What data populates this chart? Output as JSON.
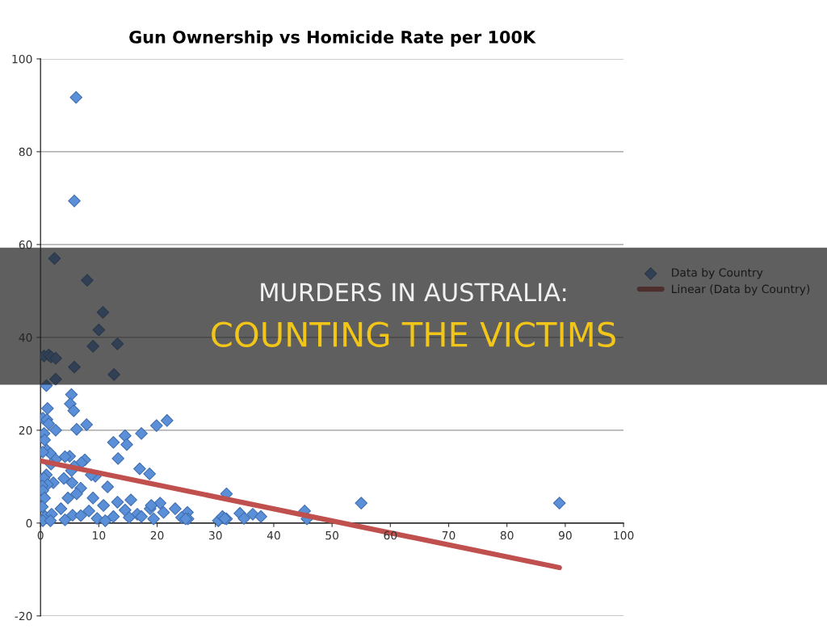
{
  "chart_data": {
    "type": "scatter",
    "title": "Gun Ownership vs Homicide Rate per 100K",
    "annotations": [
      "MURDERS IN AUSTRALIA:",
      "COUNTING THE VICTIMS"
    ],
    "series": [
      {
        "name": "Data by Country",
        "color": "#5b8fd8",
        "marker": "diamond",
        "x": [
          6.1,
          5.8,
          2.4,
          8.0,
          10.7,
          10.0,
          9.0,
          13.2,
          0.6,
          1.4,
          1.8,
          2.6,
          5.8,
          12.6,
          2.6,
          1.0,
          5.3,
          5.1,
          1.2,
          5.7,
          0.4,
          1.1,
          1.4,
          2.6,
          6.2,
          7.9,
          21.7,
          19.9,
          17.3,
          14.5,
          14.8,
          12.5,
          0.6,
          0.7,
          1.1,
          1.7,
          0.4,
          18.7,
          17.0,
          13.3,
          5.0,
          4.2,
          7.6,
          7.0,
          5.8,
          2.6,
          1.8,
          1.0,
          0.6,
          5.3,
          9.4,
          8.7,
          4.0,
          2.2,
          1.2,
          0.3,
          5.4,
          11.5,
          0.4,
          0.7,
          6.9,
          9.0,
          6.2,
          4.7,
          13.2,
          15.5,
          10.8,
          20.5,
          23.1,
          18.8,
          25.2,
          21.1,
          14.5,
          16.6,
          8.3,
          3.5,
          0.3,
          0.8,
          1.9,
          5.5,
          6.9,
          9.7,
          12.5,
          15.2,
          19.4,
          24.2,
          25.3,
          0.4,
          1.7,
          4.2,
          11.1,
          31.9,
          31.9,
          34.2,
          34.9,
          36.4,
          37.8,
          45.3,
          45.7,
          55,
          89,
          30.5,
          31.2,
          31.6,
          24.9,
          19.0,
          17.3
        ],
        "values": [
          91.7,
          69.4,
          57.0,
          52.3,
          45.4,
          41.6,
          38.1,
          38.6,
          36.0,
          36.2,
          35.8,
          35.5,
          33.6,
          32.0,
          31.0,
          29.6,
          27.7,
          25.7,
          24.7,
          24.2,
          22.6,
          22.3,
          21.4,
          20.0,
          20.2,
          21.2,
          22.1,
          21.0,
          19.3,
          18.8,
          16.9,
          17.4,
          19.3,
          17.9,
          15.7,
          15.0,
          15.3,
          10.6,
          11.7,
          13.9,
          14.4,
          14.3,
          13.6,
          13.0,
          12.2,
          13.7,
          12.7,
          10.4,
          9.7,
          11.3,
          10.1,
          10.4,
          9.6,
          8.7,
          8.3,
          8.0,
          8.7,
          7.8,
          7.0,
          5.4,
          7.5,
          5.4,
          6.3,
          5.4,
          4.5,
          5.0,
          3.8,
          4.3,
          3.1,
          3.1,
          2.3,
          2.3,
          2.8,
          1.9,
          2.6,
          3.1,
          3.5,
          1.4,
          1.9,
          1.7,
          1.6,
          1.0,
          1.4,
          1.2,
          0.9,
          1.2,
          0.9,
          0.5,
          0.5,
          0.7,
          0.5,
          6.3,
          0.9,
          2.1,
          1.0,
          1.9,
          1.4,
          2.6,
          0.9,
          4.3,
          4.3,
          0.5,
          1.4,
          1.0,
          0.9,
          3.8,
          1.4
        ]
      },
      {
        "name": "Linear (Data by Country)",
        "type": "line",
        "color": "#c0504d",
        "line_style": "solid",
        "x": [
          0,
          89
        ],
        "values": [
          13.4,
          -9.6
        ]
      }
    ],
    "xlim": [
      0,
      100
    ],
    "xticks": [
      0,
      10,
      20,
      30,
      40,
      50,
      60,
      70,
      80,
      90,
      100
    ],
    "ylim": [
      -20,
      100
    ],
    "yticks": [
      -20,
      0,
      20,
      40,
      60,
      80,
      100
    ],
    "grid": "y",
    "legend": "right"
  }
}
